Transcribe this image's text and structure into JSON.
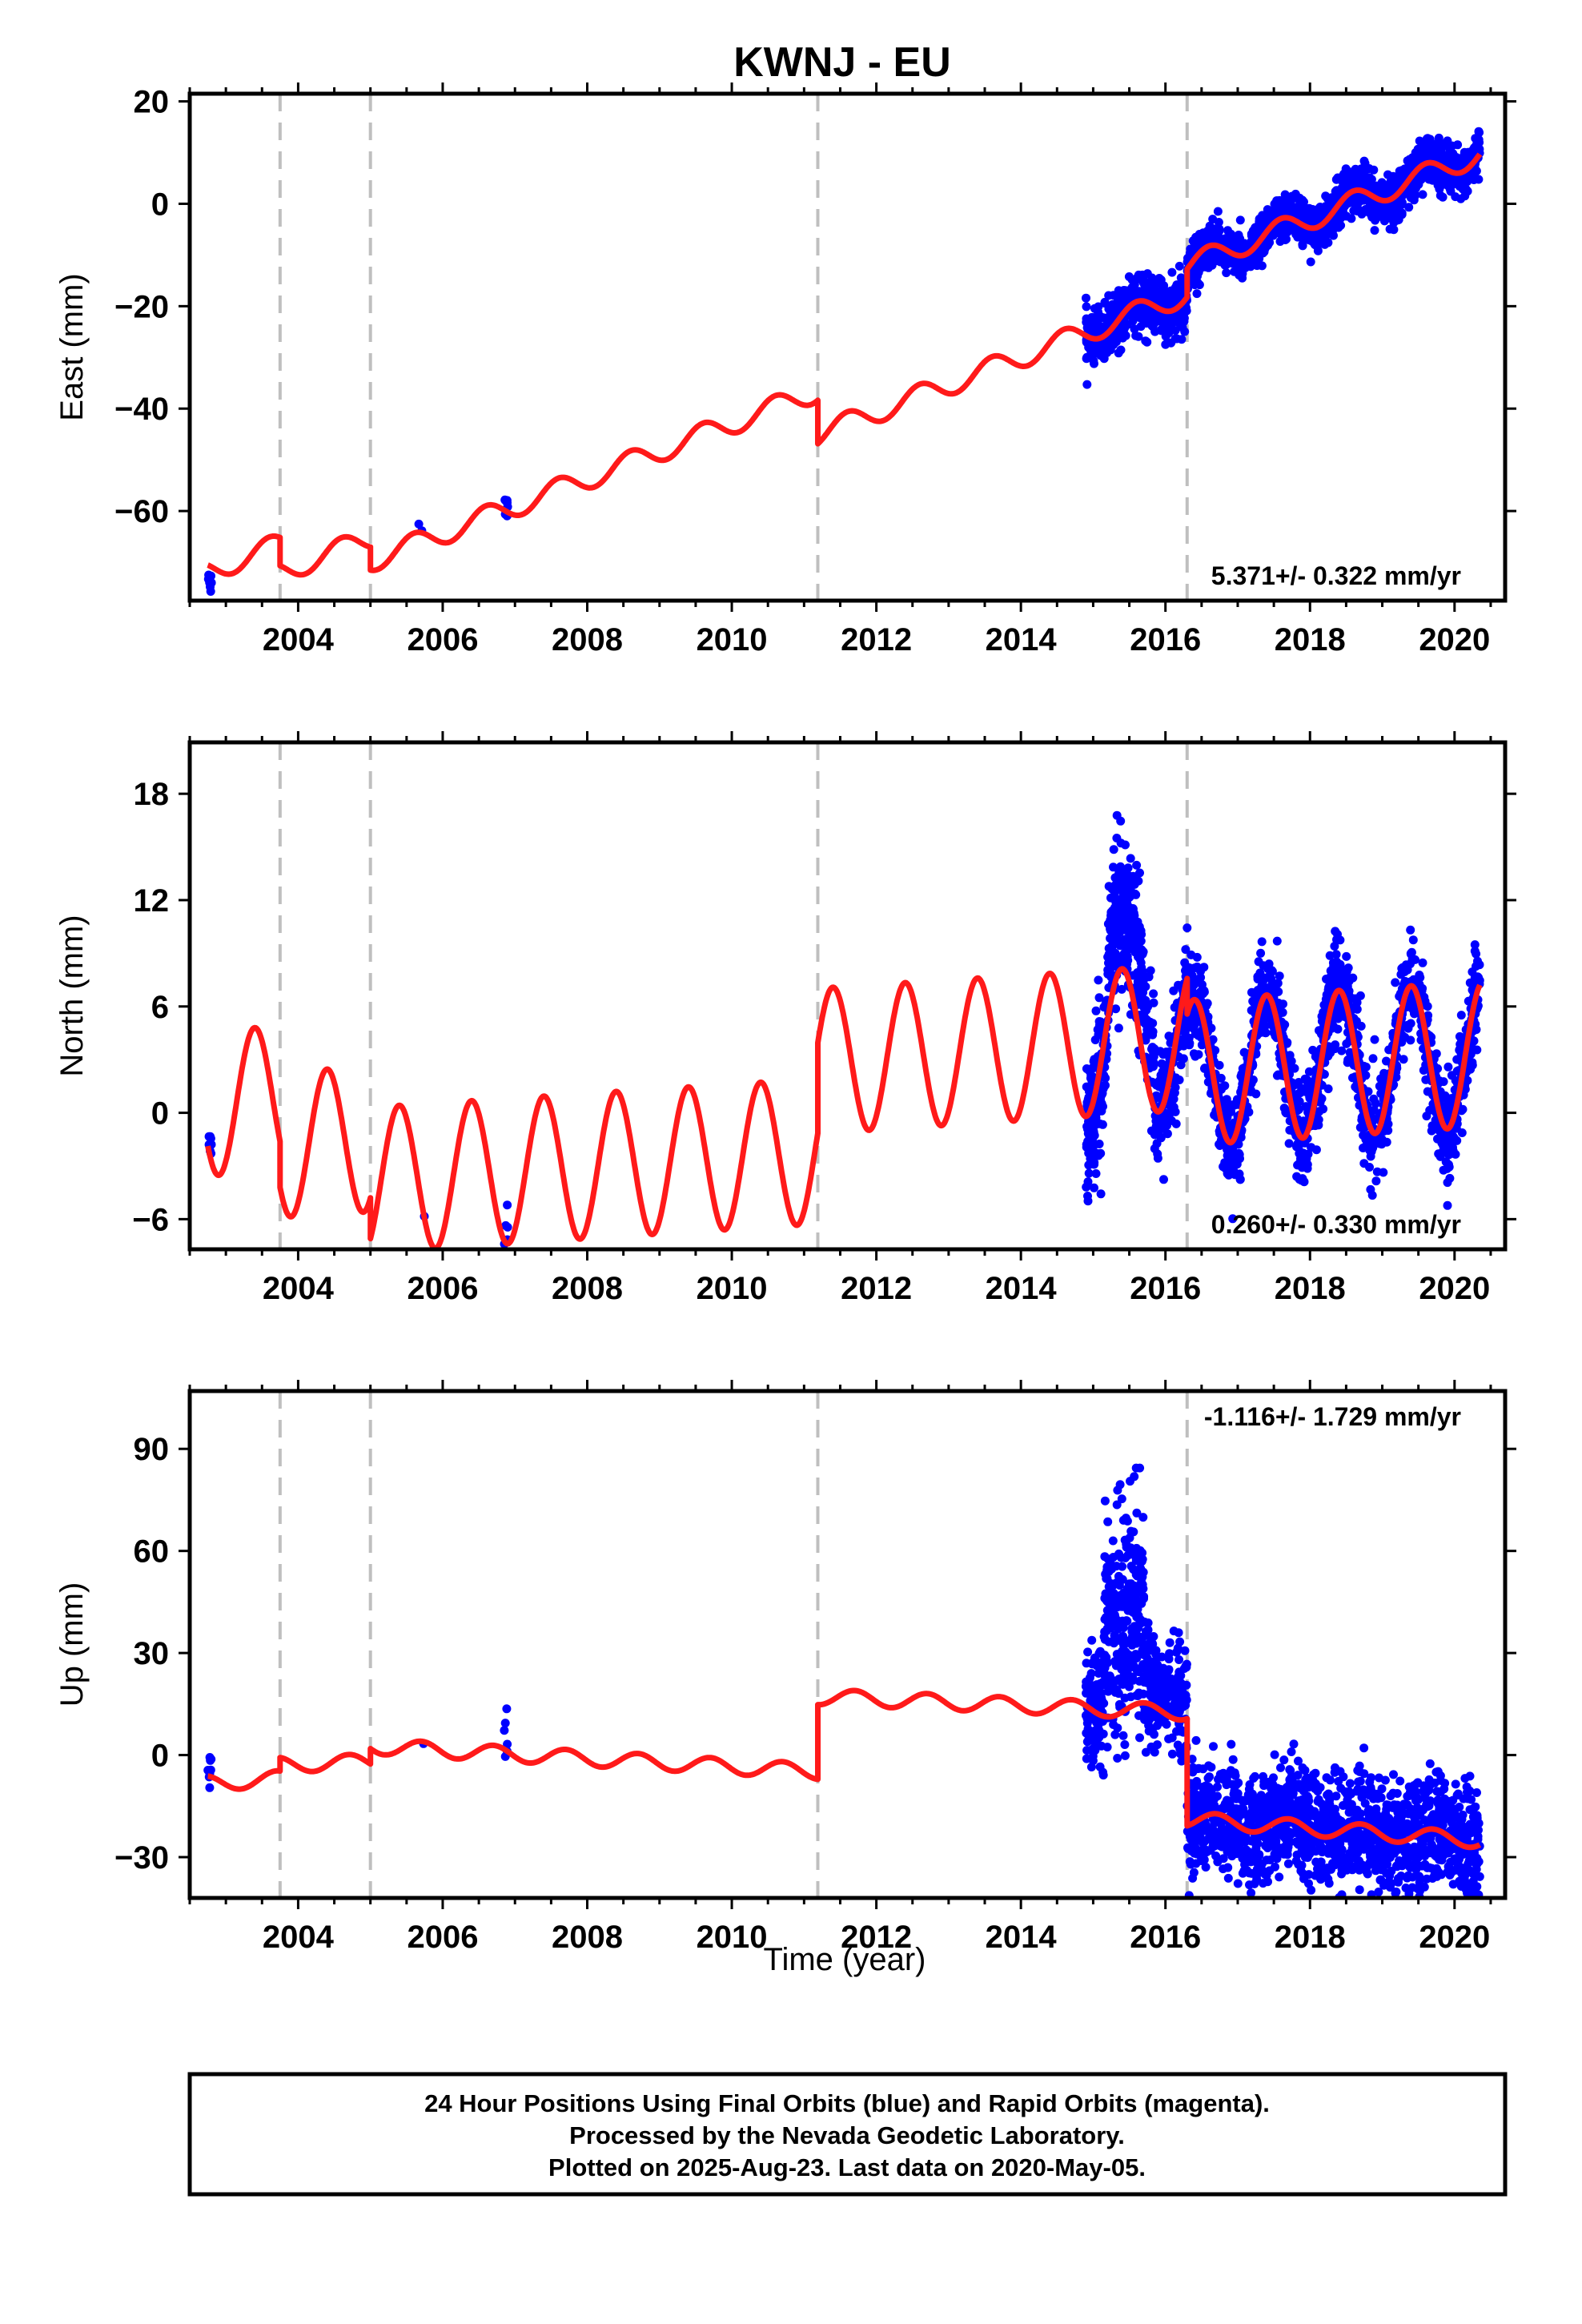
{
  "title": "KWNJ - EU",
  "xlabel": "Time (year)",
  "colors": {
    "data": "#0000ff",
    "model": "#ff1a1a",
    "breaks": "#bfbfbf"
  },
  "footer": {
    "line1": "24 Hour Positions Using Final Orbits (blue) and Rapid Orbits (magenta).",
    "line2": "Processed by the Nevada Geodetic Laboratory.",
    "line3": "Plotted on 2025-Aug-23. Last data on 2020-May-05."
  },
  "chart_data": [
    {
      "type": "scatter",
      "component": "east",
      "ylabel": "East (mm)",
      "rate_label": "5.371+/- 0.322 mm/yr",
      "xlim": [
        2002.5,
        2020.7
      ],
      "ylim": [
        -77.5,
        21.5
      ],
      "yticks": [
        -60,
        -40,
        -20,
        0,
        20
      ],
      "xticks": [
        2004,
        2006,
        2008,
        2010,
        2012,
        2014,
        2016,
        2018,
        2020
      ],
      "breaks": [
        2003.75,
        2005.0,
        2011.19,
        2016.3
      ],
      "model": {
        "type": "line",
        "segments": [
          {
            "t0": 2002.75,
            "t1": 2003.75,
            "a": -70.5,
            "b": 5.371,
            "amp": 2.2,
            "ph": 0.35
          },
          {
            "t0": 2003.75,
            "t1": 2005.0,
            "a": -76.0,
            "b": 5.371,
            "amp": 2.2,
            "ph": 0.35
          },
          {
            "t0": 2005.0,
            "t1": 2011.19,
            "a": -80.5,
            "b": 5.371,
            "amp": 2.2,
            "ph": 0.35
          },
          {
            "t0": 2011.19,
            "t1": 2016.3,
            "a": -89.0,
            "b": 5.371,
            "amp": 2.2,
            "ph": 0.35
          },
          {
            "t0": 2016.3,
            "t1": 2020.35,
            "a": -83.5,
            "b": 5.371,
            "amp": 2.2,
            "ph": 0.35
          }
        ]
      },
      "points": [
        {
          "t0": 2002.75,
          "t1": 2002.8,
          "n": 8,
          "offset": -2.5,
          "sd": 1.5
        },
        {
          "t0": 2005.65,
          "t1": 2005.72,
          "n": 2,
          "offset": 1.0,
          "sd": 0.5
        },
        {
          "t0": 2006.85,
          "t1": 2006.9,
          "n": 6,
          "offset": 1.0,
          "sd": 1.2
        },
        {
          "t0": 2014.9,
          "t1": 2016.3,
          "n": 520,
          "offset": 0,
          "sd": 2.7
        },
        {
          "t0": 2016.3,
          "t1": 2020.35,
          "n": 1500,
          "offset": 0,
          "sd": 2.2
        }
      ]
    },
    {
      "type": "scatter",
      "component": "north",
      "ylabel": "North (mm)",
      "rate_label": "0.260+/- 0.330 mm/yr",
      "xlim": [
        2002.5,
        2020.7
      ],
      "ylim": [
        -7.7,
        20.9
      ],
      "yticks": [
        -6,
        0,
        6,
        12,
        18
      ],
      "xticks": [
        2004,
        2006,
        2008,
        2010,
        2012,
        2014,
        2016,
        2018,
        2020
      ],
      "breaks": [
        2003.75,
        2005.0,
        2011.19,
        2016.3
      ],
      "model": {
        "type": "line",
        "segments": [
          {
            "t0": 2002.75,
            "t1": 2003.75,
            "a": 0.6,
            "b": 0.26,
            "amp": 4.1,
            "ph": 0.15
          },
          {
            "t0": 2003.75,
            "t1": 2005.0,
            "a": -2.0,
            "b": 0.26,
            "amp": 4.1,
            "ph": 0.15
          },
          {
            "t0": 2005.0,
            "t1": 2011.19,
            "a": -4.3,
            "b": 0.26,
            "amp": 4.1,
            "ph": 0.15
          },
          {
            "t0": 2011.19,
            "t1": 2016.3,
            "a": 0.8,
            "b": 0.26,
            "amp": 4.1,
            "ph": 0.15
          },
          {
            "t0": 2016.3,
            "t1": 2020.35,
            "a": -1.2,
            "b": 0.26,
            "amp": 4.1,
            "ph": 0.15
          }
        ]
      },
      "points": [
        {
          "t0": 2002.75,
          "t1": 2002.8,
          "n": 8,
          "offset": 0.4,
          "sd": 0.6
        },
        {
          "t0": 2005.72,
          "t1": 2005.75,
          "n": 1,
          "offset": 0.0,
          "sd": 0.3
        },
        {
          "t0": 2006.85,
          "t1": 2006.9,
          "n": 6,
          "offset": 0.5,
          "sd": 1.3
        },
        {
          "t0": 2014.9,
          "t1": 2015.2,
          "n": 160,
          "offset": -0.8,
          "sd": 2.0
        },
        {
          "t0": 2015.2,
          "t1": 2015.85,
          "n": 320,
          "offset": 3.6,
          "sd": 2.0
        },
        {
          "t0": 2015.85,
          "t1": 2016.3,
          "n": 170,
          "offset": -0.3,
          "sd": 1.5
        },
        {
          "t0": 2016.3,
          "t1": 2020.35,
          "n": 1500,
          "offset": 0,
          "sd": 1.4
        }
      ]
    },
    {
      "type": "scatter",
      "component": "up",
      "ylabel": "Up (mm)",
      "rate_label": "-1.116+/- 1.729 mm/yr",
      "xlim": [
        2002.5,
        2020.7
      ],
      "ylim": [
        -42,
        107
      ],
      "yticks": [
        -30,
        0,
        30,
        60,
        90
      ],
      "xticks": [
        2004,
        2006,
        2008,
        2010,
        2012,
        2014,
        2016,
        2018,
        2020
      ],
      "breaks": [
        2003.75,
        2005.0,
        2011.19,
        2016.3
      ],
      "model": {
        "type": "line",
        "segments": [
          {
            "t0": 2002.75,
            "t1": 2003.75,
            "a": -8.0,
            "b": 1.5,
            "amp": 2.3,
            "ph": 0.45
          },
          {
            "t0": 2003.75,
            "t1": 2005.0,
            "a": -3.5,
            "b": 0.8,
            "amp": 2.3,
            "ph": 0.45
          },
          {
            "t0": 2005.0,
            "t1": 2011.19,
            "a": 5.0,
            "b": -1.2,
            "amp": 2.3,
            "ph": 0.45
          },
          {
            "t0": 2011.19,
            "t1": 2016.3,
            "a": 24.5,
            "b": -0.9,
            "amp": 2.3,
            "ph": 0.45
          },
          {
            "t0": 2016.3,
            "t1": 2020.35,
            "a": 1.0,
            "b": -1.5,
            "amp": 2.3,
            "ph": 0.45
          }
        ]
      },
      "points": [
        {
          "t0": 2002.75,
          "t1": 2002.8,
          "n": 8,
          "offset": 0,
          "sd": 3
        },
        {
          "t0": 2005.72,
          "t1": 2005.75,
          "n": 1,
          "offset": -1,
          "sd": 1
        },
        {
          "t0": 2006.85,
          "t1": 2006.9,
          "n": 6,
          "offset": 2,
          "sd": 4
        },
        {
          "t0": 2014.9,
          "t1": 2015.15,
          "n": 120,
          "offset": 0,
          "sd": 8
        },
        {
          "t0": 2015.15,
          "t1": 2015.7,
          "n": 300,
          "offset": 28,
          "sd": 15
        },
        {
          "t0": 2015.7,
          "t1": 2016.3,
          "n": 230,
          "offset": 6,
          "sd": 8
        },
        {
          "t0": 2016.3,
          "t1": 2020.35,
          "n": 1500,
          "offset": 0,
          "sd": 8
        }
      ]
    }
  ]
}
